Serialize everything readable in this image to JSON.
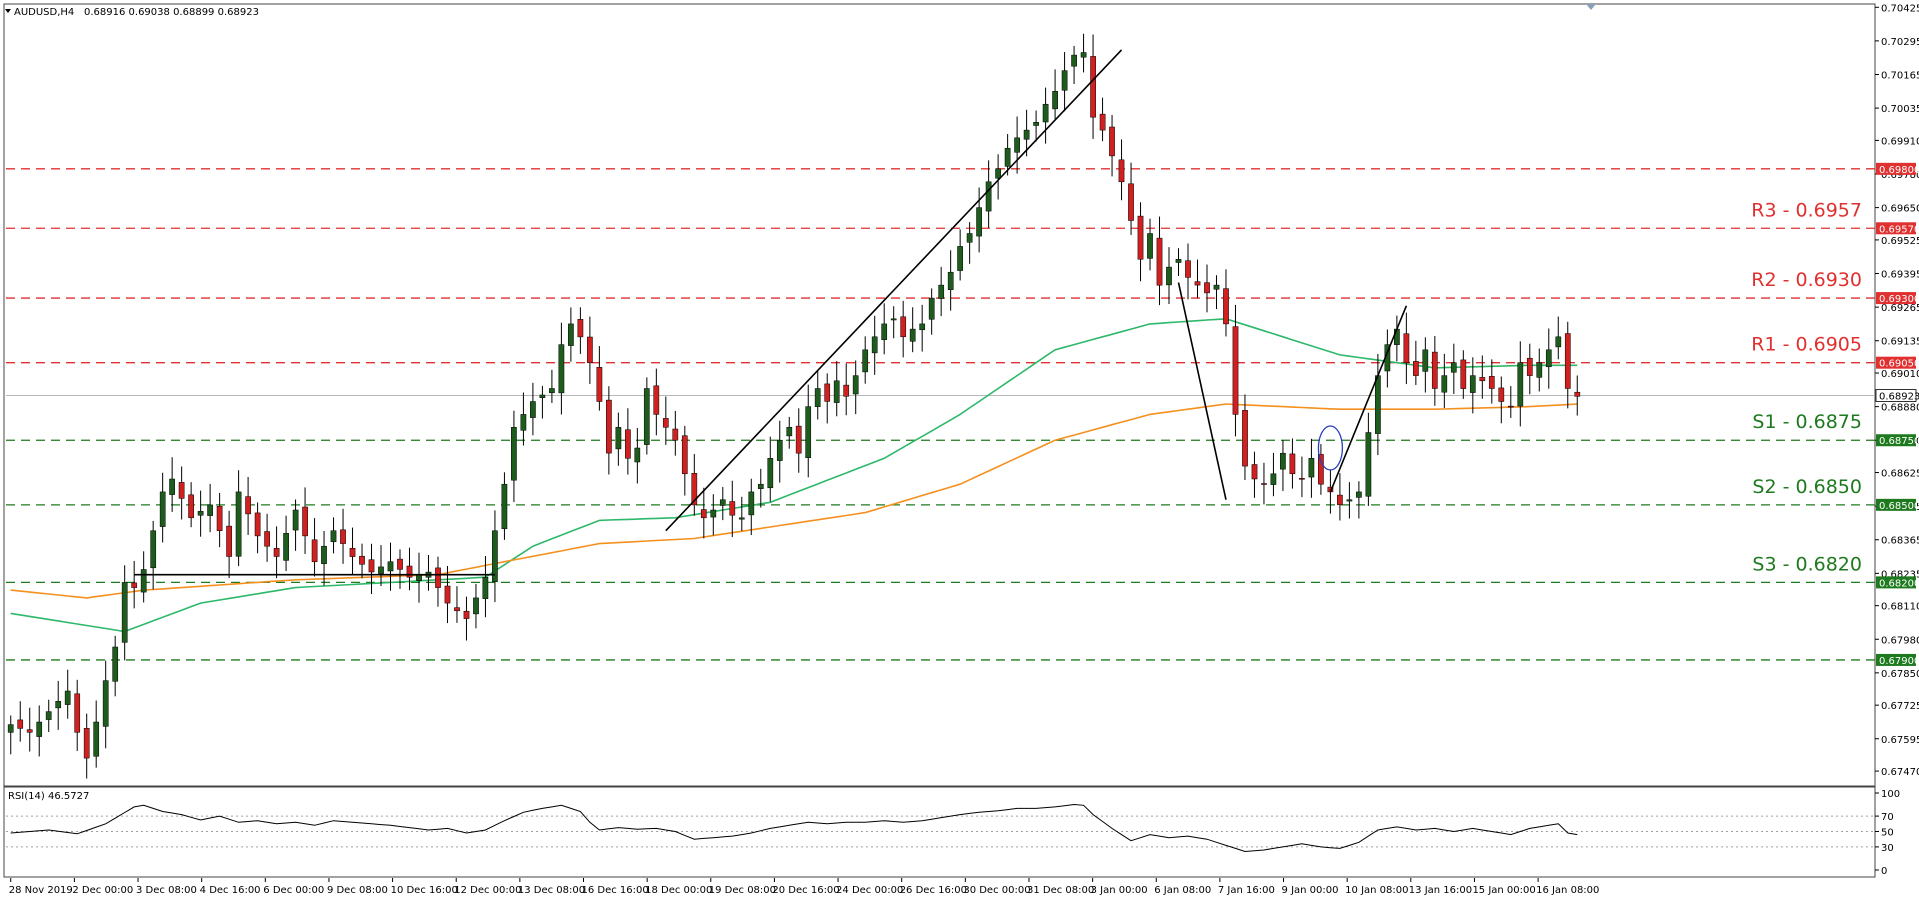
{
  "header": {
    "symbol": "AUDUSD,H4",
    "ohlc": "0.68916 0.69038 0.68899 0.68923"
  },
  "rsi_header": "RSI(14) 46.5727",
  "colors": {
    "bull": "#1e5c1e",
    "bear": "#d02020",
    "ma_green": "#2eb86a",
    "ma_orange": "#f5901e",
    "res": "#e03030",
    "sup": "#1e7a1e",
    "rsi_line": "#000000",
    "ellipse": "#2a3fbf"
  },
  "chart_data": [
    {
      "type": "candlestick",
      "symbol": "AUDUSD",
      "timeframe": "H4",
      "ylim": [
        0.6742,
        0.7043
      ],
      "price_ticks": [
        "0.70425",
        "0.70295",
        "0.70165",
        "0.70035",
        "0.69910",
        "0.69780",
        "0.69650",
        "0.69525",
        "0.69395",
        "0.69265",
        "0.69135",
        "0.69010",
        "0.68880",
        "0.68750",
        "0.68625",
        "0.68495",
        "0.68365",
        "0.68235",
        "0.68110",
        "0.67980",
        "0.67850",
        "0.67725",
        "0.67595",
        "0.67470"
      ],
      "x_labels": [
        "28 Nov 2019",
        "2 Dec 00:00",
        "3 Dec 08:00",
        "4 Dec 16:00",
        "6 Dec 00:00",
        "9 Dec 08:00",
        "10 Dec 16:00",
        "12 Dec 00:00",
        "13 Dec 08:00",
        "16 Dec 16:00",
        "18 Dec 00:00",
        "19 Dec 08:00",
        "20 Dec 16:00",
        "24 Dec 00:00",
        "26 Dec 16:00",
        "30 Dec 00:00",
        "31 Dec 08:00",
        "3 Jan 00:00",
        "6 Jan 08:00",
        "7 Jan 16:00",
        "9 Jan 00:00",
        "10 Jan 08:00",
        "13 Jan 16:00",
        "15 Jan 00:00",
        "16 Jan 08:00"
      ],
      "current_price": {
        "value": 0.68923,
        "label": "0.68923"
      },
      "levels": [
        {
          "value": 0.698,
          "tag": "0.69800",
          "label": "",
          "kind": "res"
        },
        {
          "value": 0.6957,
          "tag": "0.69570",
          "label": "R3 - 0.6957",
          "kind": "res"
        },
        {
          "value": 0.693,
          "tag": "0.69300",
          "label": "R2 - 0.6930",
          "kind": "res"
        },
        {
          "value": 0.6905,
          "tag": "0.69050",
          "label": "R1 - 0.6905",
          "kind": "res"
        },
        {
          "value": 0.6875,
          "tag": "0.68750",
          "label": "S1 - 0.6875",
          "kind": "sup"
        },
        {
          "value": 0.685,
          "tag": "0.68500",
          "label": "S2 - 0.6850",
          "kind": "sup"
        },
        {
          "value": 0.682,
          "tag": "0.68200",
          "label": "S3 - 0.6820",
          "kind": "sup"
        },
        {
          "value": 0.679,
          "tag": "0.67900",
          "label": "",
          "kind": "sup"
        }
      ],
      "close_path": [
        [
          0,
          0.6765
        ],
        [
          2,
          0.6762
        ],
        [
          4,
          0.677
        ],
        [
          6,
          0.6778
        ],
        [
          7,
          0.6762
        ],
        [
          8,
          0.6752
        ],
        [
          9,
          0.6766
        ],
        [
          10,
          0.6782
        ],
        [
          11,
          0.6795
        ],
        [
          12,
          0.682
        ],
        [
          13,
          0.6818
        ],
        [
          14,
          0.6825
        ],
        [
          16,
          0.6855
        ],
        [
          17,
          0.686
        ],
        [
          19,
          0.6845
        ],
        [
          21,
          0.685
        ],
        [
          23,
          0.683
        ],
        [
          24,
          0.6855
        ],
        [
          26,
          0.6838
        ],
        [
          28,
          0.683
        ],
        [
          30,
          0.6848
        ],
        [
          32,
          0.6828
        ],
        [
          34,
          0.684
        ],
        [
          36,
          0.683
        ],
        [
          38,
          0.6824
        ],
        [
          40,
          0.6828
        ],
        [
          42,
          0.6822
        ],
        [
          44,
          0.6824
        ],
        [
          46,
          0.6812
        ],
        [
          48,
          0.6806
        ],
        [
          50,
          0.6822
        ],
        [
          51,
          0.684
        ],
        [
          52,
          0.6858
        ],
        [
          53,
          0.688
        ],
        [
          55,
          0.689
        ],
        [
          57,
          0.6895
        ],
        [
          58,
          0.6912
        ],
        [
          59,
          0.692
        ],
        [
          60,
          0.6915
        ],
        [
          61,
          0.6905
        ],
        [
          62,
          0.689
        ],
        [
          63,
          0.687
        ],
        [
          64,
          0.688
        ],
        [
          65,
          0.6868
        ],
        [
          66,
          0.6872
        ],
        [
          67,
          0.6895
        ],
        [
          68,
          0.6885
        ],
        [
          69,
          0.688
        ],
        [
          70,
          0.6875
        ],
        [
          71,
          0.6862
        ],
        [
          72,
          0.685
        ],
        [
          73,
          0.6845
        ],
        [
          74,
          0.6848
        ],
        [
          75,
          0.6852
        ],
        [
          76,
          0.6846
        ],
        [
          77,
          0.6845
        ],
        [
          78,
          0.6855
        ],
        [
          79,
          0.6858
        ],
        [
          80,
          0.6868
        ],
        [
          81,
          0.6875
        ],
        [
          82,
          0.688
        ],
        [
          83,
          0.687
        ],
        [
          84,
          0.6888
        ],
        [
          85,
          0.6895
        ],
        [
          86,
          0.689
        ],
        [
          87,
          0.6898
        ],
        [
          88,
          0.6892
        ],
        [
          89,
          0.69
        ],
        [
          90,
          0.691
        ],
        [
          91,
          0.6915
        ],
        [
          92,
          0.692
        ],
        [
          93,
          0.6922
        ],
        [
          94,
          0.6915
        ],
        [
          95,
          0.6918
        ],
        [
          96,
          0.692
        ],
        [
          97,
          0.693
        ],
        [
          98,
          0.6935
        ],
        [
          99,
          0.694
        ],
        [
          100,
          0.695
        ],
        [
          101,
          0.6955
        ],
        [
          102,
          0.6965
        ],
        [
          103,
          0.6975
        ],
        [
          104,
          0.698
        ],
        [
          105,
          0.6988
        ],
        [
          106,
          0.6992
        ],
        [
          107,
          0.6995
        ],
        [
          108,
          0.6998
        ],
        [
          109,
          0.7005
        ],
        [
          110,
          0.701
        ],
        [
          111,
          0.7018
        ],
        [
          112,
          0.7024
        ],
        [
          113,
          0.7025
        ],
        [
          114,
          0.7
        ],
        [
          115,
          0.6995
        ],
        [
          116,
          0.6985
        ],
        [
          117,
          0.6975
        ],
        [
          118,
          0.696
        ],
        [
          119,
          0.6945
        ],
        [
          120,
          0.6955
        ],
        [
          121,
          0.6935
        ],
        [
          122,
          0.6942
        ],
        [
          123,
          0.6945
        ],
        [
          124,
          0.6938
        ],
        [
          125,
          0.6935
        ],
        [
          126,
          0.6932
        ],
        [
          127,
          0.6935
        ],
        [
          128,
          0.692
        ],
        [
          129,
          0.6885
        ],
        [
          130,
          0.6865
        ],
        [
          131,
          0.686
        ],
        [
          132,
          0.6858
        ],
        [
          133,
          0.6862
        ],
        [
          134,
          0.687
        ],
        [
          135,
          0.6862
        ],
        [
          136,
          0.686
        ],
        [
          137,
          0.6868
        ],
        [
          138,
          0.6858
        ],
        [
          139,
          0.6855
        ],
        [
          140,
          0.685
        ],
        [
          141,
          0.6852
        ],
        [
          142,
          0.6855
        ],
        [
          143,
          0.6878
        ],
        [
          144,
          0.69
        ],
        [
          145,
          0.6912
        ],
        [
          146,
          0.6918
        ],
        [
          147,
          0.6905
        ],
        [
          148,
          0.69
        ],
        [
          149,
          0.691
        ],
        [
          150,
          0.6895
        ],
        [
          151,
          0.69
        ],
        [
          152,
          0.6905
        ],
        [
          153,
          0.6895
        ],
        [
          154,
          0.69
        ],
        [
          155,
          0.6898
        ],
        [
          156,
          0.6895
        ],
        [
          157,
          0.689
        ],
        [
          158,
          0.6888
        ],
        [
          159,
          0.6905
        ],
        [
          160,
          0.69
        ],
        [
          161,
          0.6905
        ],
        [
          162,
          0.691
        ],
        [
          163,
          0.6915
        ],
        [
          164,
          0.6895
        ],
        [
          165,
          0.6892
        ]
      ],
      "ma_green": [
        [
          0,
          0.6808
        ],
        [
          12,
          0.6801
        ],
        [
          20,
          0.6812
        ],
        [
          30,
          0.6818
        ],
        [
          40,
          0.682
        ],
        [
          50,
          0.6822
        ],
        [
          55,
          0.6834
        ],
        [
          62,
          0.6844
        ],
        [
          70,
          0.6845
        ],
        [
          80,
          0.6851
        ],
        [
          92,
          0.6868
        ],
        [
          100,
          0.6885
        ],
        [
          110,
          0.691
        ],
        [
          120,
          0.692
        ],
        [
          128,
          0.6922
        ],
        [
          140,
          0.6908
        ],
        [
          150,
          0.6903
        ],
        [
          160,
          0.6904
        ],
        [
          165,
          0.6904
        ]
      ],
      "ma_orange": [
        [
          0,
          0.6817
        ],
        [
          8,
          0.6814
        ],
        [
          14,
          0.6817
        ],
        [
          30,
          0.6821
        ],
        [
          45,
          0.6823
        ],
        [
          52,
          0.6828
        ],
        [
          62,
          0.6835
        ],
        [
          72,
          0.6837
        ],
        [
          90,
          0.6847
        ],
        [
          100,
          0.6858
        ],
        [
          110,
          0.6875
        ],
        [
          120,
          0.6885
        ],
        [
          128,
          0.6889
        ],
        [
          140,
          0.6887
        ],
        [
          150,
          0.6887
        ],
        [
          160,
          0.6888
        ],
        [
          165,
          0.6889
        ]
      ],
      "trendlines": [
        {
          "from": [
            13,
            0.6823
          ],
          "to": [
            51,
            0.6823
          ]
        },
        {
          "from": [
            69,
            0.684
          ],
          "to": [
            117,
            0.7026
          ]
        },
        {
          "from": [
            123,
            0.6936
          ],
          "to": [
            128,
            0.6852
          ]
        },
        {
          "from": [
            139,
            0.6855
          ],
          "to": [
            147,
            0.6927
          ]
        }
      ],
      "ellipse": {
        "x": 139,
        "y": 0.6872
      }
    },
    {
      "type": "line",
      "indicator": "RSI(14)",
      "ylim": [
        0,
        100
      ],
      "ticks": [
        "100",
        "70",
        "50",
        "30",
        "0"
      ],
      "levels": [
        70,
        50,
        30
      ],
      "values": [
        [
          0,
          48
        ],
        [
          4,
          52
        ],
        [
          7,
          47
        ],
        [
          10,
          60
        ],
        [
          13,
          82
        ],
        [
          14,
          84
        ],
        [
          16,
          76
        ],
        [
          18,
          72
        ],
        [
          20,
          65
        ],
        [
          22,
          70
        ],
        [
          24,
          62
        ],
        [
          26,
          64
        ],
        [
          28,
          60
        ],
        [
          30,
          62
        ],
        [
          32,
          58
        ],
        [
          34,
          64
        ],
        [
          36,
          62
        ],
        [
          38,
          60
        ],
        [
          40,
          58
        ],
        [
          42,
          55
        ],
        [
          44,
          52
        ],
        [
          46,
          54
        ],
        [
          48,
          48
        ],
        [
          50,
          52
        ],
        [
          52,
          64
        ],
        [
          54,
          75
        ],
        [
          56,
          80
        ],
        [
          58,
          84
        ],
        [
          59,
          80
        ],
        [
          60,
          76
        ],
        [
          61,
          62
        ],
        [
          62,
          52
        ],
        [
          64,
          55
        ],
        [
          66,
          53
        ],
        [
          68,
          54
        ],
        [
          70,
          50
        ],
        [
          72,
          40
        ],
        [
          74,
          42
        ],
        [
          76,
          44
        ],
        [
          78,
          48
        ],
        [
          80,
          54
        ],
        [
          82,
          58
        ],
        [
          84,
          62
        ],
        [
          86,
          60
        ],
        [
          88,
          62
        ],
        [
          90,
          62
        ],
        [
          92,
          64
        ],
        [
          94,
          62
        ],
        [
          96,
          64
        ],
        [
          98,
          68
        ],
        [
          100,
          72
        ],
        [
          102,
          75
        ],
        [
          104,
          77
        ],
        [
          106,
          80
        ],
        [
          108,
          80
        ],
        [
          110,
          82
        ],
        [
          112,
          85
        ],
        [
          113,
          84
        ],
        [
          114,
          72
        ],
        [
          116,
          54
        ],
        [
          118,
          38
        ],
        [
          120,
          46
        ],
        [
          122,
          42
        ],
        [
          124,
          44
        ],
        [
          126,
          40
        ],
        [
          128,
          32
        ],
        [
          130,
          24
        ],
        [
          132,
          26
        ],
        [
          134,
          30
        ],
        [
          136,
          34
        ],
        [
          138,
          30
        ],
        [
          140,
          28
        ],
        [
          142,
          36
        ],
        [
          144,
          52
        ],
        [
          146,
          56
        ],
        [
          148,
          52
        ],
        [
          150,
          54
        ],
        [
          152,
          50
        ],
        [
          154,
          54
        ],
        [
          156,
          50
        ],
        [
          158,
          46
        ],
        [
          160,
          54
        ],
        [
          162,
          58
        ],
        [
          163,
          60
        ],
        [
          164,
          48
        ],
        [
          165,
          46
        ]
      ]
    }
  ]
}
